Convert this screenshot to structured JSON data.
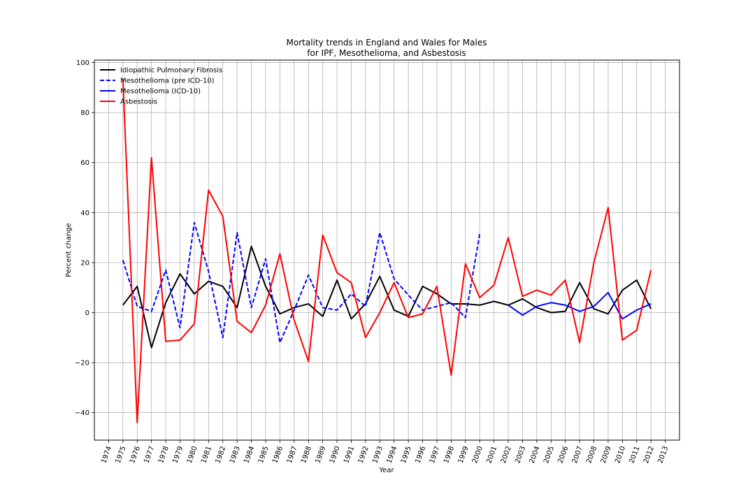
{
  "chart_data": {
    "type": "line",
    "title": "Mortality trends in England and Wales for Males",
    "subtitle": "for IPF, Mesothelioma, and Asbestosis",
    "xlabel": "Year",
    "ylabel": "Percent change",
    "xlim": [
      1973,
      2014
    ],
    "ylim": [
      -51,
      101
    ],
    "x_ticks": [
      1974,
      1975,
      1976,
      1977,
      1978,
      1979,
      1980,
      1981,
      1982,
      1983,
      1984,
      1985,
      1986,
      1987,
      1988,
      1989,
      1990,
      1991,
      1992,
      1993,
      1994,
      1995,
      1996,
      1997,
      1998,
      1999,
      2000,
      2001,
      2002,
      2003,
      2004,
      2005,
      2006,
      2007,
      2008,
      2009,
      2010,
      2011,
      2012,
      2013
    ],
    "y_ticks": [
      -40,
      -20,
      0,
      20,
      40,
      60,
      80,
      100
    ],
    "grid": true,
    "legend_position": "top-left",
    "series": [
      {
        "name": "Idiopathic Pulmonary Fibrosis",
        "color": "#000000",
        "dash": "solid",
        "x": [
          1975,
          1976,
          1977,
          1978,
          1979,
          1980,
          1981,
          1982,
          1983,
          1984,
          1985,
          1986,
          1987,
          1988,
          1989,
          1990,
          1991,
          1992,
          1993,
          1994,
          1995,
          1996,
          1997,
          1998,
          1999,
          2000,
          2001,
          2002,
          2003,
          2004,
          2005,
          2006,
          2007,
          2008,
          2009,
          2010,
          2011,
          2012
        ],
        "values": [
          3,
          10.5,
          -14,
          4,
          15.5,
          7.5,
          12.5,
          10.5,
          2,
          26.5,
          10.5,
          -0.5,
          2,
          3.5,
          -1.5,
          13,
          -2.5,
          3.5,
          14.5,
          1,
          -1.5,
          10.5,
          7.5,
          3.5,
          3.5,
          3,
          4.5,
          3,
          5.5,
          2,
          0,
          0.5,
          12,
          1.5,
          -0.5,
          9,
          13,
          1.5
        ]
      },
      {
        "name": "Mesothelioma (pre ICD-10)",
        "color": "#0000ff",
        "dash": "dashed",
        "x": [
          1975,
          1976,
          1977,
          1978,
          1979,
          1980,
          1981,
          1982,
          1983,
          1984,
          1985,
          1986,
          1987,
          1988,
          1989,
          1990,
          1991,
          1992,
          1993,
          1994,
          1995,
          1996,
          1997,
          1998,
          1999,
          2000
        ],
        "values": [
          21,
          2.5,
          0.5,
          17,
          -6,
          36,
          16.5,
          -10,
          32,
          2,
          21.5,
          -12,
          1,
          15,
          2,
          1,
          7.5,
          2.5,
          32,
          13.5,
          7,
          1,
          2.5,
          4,
          -2,
          31.5
        ]
      },
      {
        "name": "Mesothelioma (ICD-10)",
        "color": "#0000ff",
        "dash": "solid",
        "x": [
          2001,
          2002,
          2003,
          2004,
          2005,
          2006,
          2007,
          2008,
          2009,
          2010,
          2011,
          2012
        ],
        "values": [
          null,
          3,
          -1,
          2.5,
          4,
          3,
          0.5,
          2.5,
          8,
          -2.5,
          1,
          3.5
        ]
      },
      {
        "name": "Asbestosis",
        "color": "#ff0000",
        "dash": "solid",
        "x": [
          1975,
          1976,
          1977,
          1978,
          1979,
          1980,
          1981,
          1982,
          1983,
          1984,
          1985,
          1986,
          1987,
          1988,
          1989,
          1990,
          1991,
          1992,
          1993,
          1994,
          1995,
          1996,
          1997,
          1998,
          1999,
          2000,
          2001,
          2002,
          2003,
          2004,
          2005,
          2006,
          2007,
          2008,
          2009,
          2010,
          2011,
          2012
        ],
        "values": [
          93.5,
          -44,
          62,
          -11.5,
          -11,
          -4.5,
          49,
          38.5,
          -3.5,
          -8,
          3,
          23.5,
          -3,
          -19.5,
          31,
          16,
          12,
          -10,
          0,
          12,
          -2,
          -0.5,
          10.5,
          -25,
          19.5,
          6,
          11,
          30,
          6.5,
          9,
          7,
          13,
          -12,
          20,
          42,
          -11,
          -7,
          17
        ]
      }
    ]
  }
}
